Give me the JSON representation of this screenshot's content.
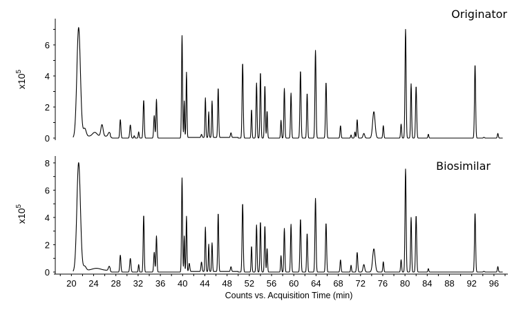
{
  "chart_data": [
    {
      "type": "line",
      "panel_label": "Originator",
      "ylabel": "x10",
      "ylabel_exponent": "5",
      "xlim": [
        17.1,
        98.5
      ],
      "ylim": [
        0,
        7.6
      ],
      "yticks": [
        0,
        2,
        4,
        6
      ],
      "line_color": "#000000",
      "peaks_time_height_sigma": [
        [
          21.3,
          7.0,
          0.32
        ],
        [
          22.4,
          0.5,
          0.25
        ],
        [
          24.2,
          0.25,
          0.4
        ],
        [
          25.5,
          0.75,
          0.2
        ],
        [
          26.8,
          0.25,
          0.2
        ],
        [
          28.8,
          1.2,
          0.1
        ],
        [
          30.6,
          0.85,
          0.11
        ],
        [
          31.3,
          0.15,
          0.08
        ],
        [
          32.1,
          0.4,
          0.08
        ],
        [
          33.0,
          2.45,
          0.1
        ],
        [
          34.9,
          1.45,
          0.1
        ],
        [
          35.3,
          2.5,
          0.09
        ],
        [
          39.9,
          6.6,
          0.09
        ],
        [
          40.3,
          2.35,
          0.07
        ],
        [
          40.7,
          4.2,
          0.08
        ],
        [
          43.4,
          0.2,
          0.1
        ],
        [
          44.1,
          2.55,
          0.08
        ],
        [
          44.7,
          1.65,
          0.07
        ],
        [
          45.3,
          2.35,
          0.08
        ],
        [
          46.4,
          3.2,
          0.09
        ],
        [
          48.7,
          0.3,
          0.1
        ],
        [
          50.8,
          4.85,
          0.1
        ],
        [
          52.4,
          1.85,
          0.08
        ],
        [
          53.3,
          3.55,
          0.09
        ],
        [
          54.0,
          4.25,
          0.09
        ],
        [
          54.8,
          3.4,
          0.09
        ],
        [
          55.2,
          1.75,
          0.08
        ],
        [
          57.7,
          1.15,
          0.08
        ],
        [
          58.3,
          3.2,
          0.09
        ],
        [
          59.5,
          2.9,
          0.09
        ],
        [
          61.2,
          4.35,
          0.1
        ],
        [
          62.4,
          2.9,
          0.09
        ],
        [
          63.9,
          5.65,
          0.1
        ],
        [
          65.8,
          3.6,
          0.1
        ],
        [
          68.4,
          0.8,
          0.09
        ],
        [
          70.3,
          0.2,
          0.08
        ],
        [
          71.0,
          0.4,
          0.08
        ],
        [
          71.4,
          1.2,
          0.09
        ],
        [
          72.6,
          0.3,
          0.15
        ],
        [
          74.4,
          1.7,
          0.22
        ],
        [
          76.1,
          0.8,
          0.09
        ],
        [
          79.3,
          0.9,
          0.09
        ],
        [
          80.1,
          7.0,
          0.1
        ],
        [
          81.1,
          3.5,
          0.09
        ],
        [
          82.0,
          3.35,
          0.1
        ],
        [
          84.2,
          0.25,
          0.08
        ],
        [
          92.6,
          4.75,
          0.1
        ],
        [
          94.2,
          0.05,
          0.1
        ],
        [
          96.7,
          0.3,
          0.09
        ]
      ]
    },
    {
      "type": "line",
      "panel_label": "Biosimilar",
      "ylabel": "x10",
      "ylabel_exponent": "5",
      "xlabel": "Counts vs. Acquisition Time (min)",
      "xlim": [
        17.1,
        98.5
      ],
      "ylim": [
        0,
        8.4
      ],
      "yticks": [
        0,
        2,
        4,
        6,
        8
      ],
      "xticks": [
        20,
        24,
        28,
        32,
        36,
        40,
        44,
        48,
        52,
        56,
        60,
        64,
        68,
        72,
        76,
        80,
        84,
        88,
        92,
        96
      ],
      "line_color": "#000000",
      "peaks_time_height_sigma": [
        [
          21.3,
          7.9,
          0.32
        ],
        [
          22.4,
          0.3,
          0.25
        ],
        [
          24.5,
          0.15,
          0.8
        ],
        [
          26.8,
          0.3,
          0.15
        ],
        [
          28.8,
          1.25,
          0.1
        ],
        [
          30.6,
          1.0,
          0.11
        ],
        [
          32.1,
          0.55,
          0.08
        ],
        [
          33.0,
          4.2,
          0.09
        ],
        [
          34.9,
          1.45,
          0.1
        ],
        [
          35.3,
          2.65,
          0.09
        ],
        [
          39.9,
          6.9,
          0.09
        ],
        [
          40.3,
          2.6,
          0.07
        ],
        [
          40.7,
          4.05,
          0.08
        ],
        [
          41.2,
          0.6,
          0.1
        ],
        [
          43.4,
          0.7,
          0.1
        ],
        [
          44.1,
          3.25,
          0.08
        ],
        [
          44.7,
          2.0,
          0.07
        ],
        [
          45.3,
          2.1,
          0.08
        ],
        [
          46.4,
          4.3,
          0.09
        ],
        [
          48.7,
          0.35,
          0.1
        ],
        [
          50.8,
          5.05,
          0.1
        ],
        [
          52.4,
          1.9,
          0.08
        ],
        [
          53.3,
          3.45,
          0.09
        ],
        [
          54.0,
          3.7,
          0.09
        ],
        [
          54.8,
          3.4,
          0.09
        ],
        [
          55.2,
          1.75,
          0.08
        ],
        [
          57.7,
          1.2,
          0.08
        ],
        [
          58.3,
          3.2,
          0.09
        ],
        [
          59.5,
          3.5,
          0.09
        ],
        [
          61.2,
          3.9,
          0.1
        ],
        [
          62.4,
          2.85,
          0.09
        ],
        [
          63.9,
          5.4,
          0.1
        ],
        [
          65.8,
          3.6,
          0.1
        ],
        [
          68.4,
          0.9,
          0.09
        ],
        [
          70.3,
          0.5,
          0.08
        ],
        [
          71.4,
          1.45,
          0.1
        ],
        [
          72.6,
          0.55,
          0.15
        ],
        [
          74.4,
          1.7,
          0.22
        ],
        [
          76.1,
          0.75,
          0.09
        ],
        [
          79.3,
          0.9,
          0.09
        ],
        [
          80.1,
          7.55,
          0.1
        ],
        [
          81.1,
          4.0,
          0.09
        ],
        [
          82.0,
          4.15,
          0.1
        ],
        [
          84.2,
          0.25,
          0.08
        ],
        [
          92.6,
          4.35,
          0.1
        ],
        [
          94.2,
          0.05,
          0.1
        ],
        [
          96.7,
          0.4,
          0.09
        ]
      ]
    }
  ]
}
